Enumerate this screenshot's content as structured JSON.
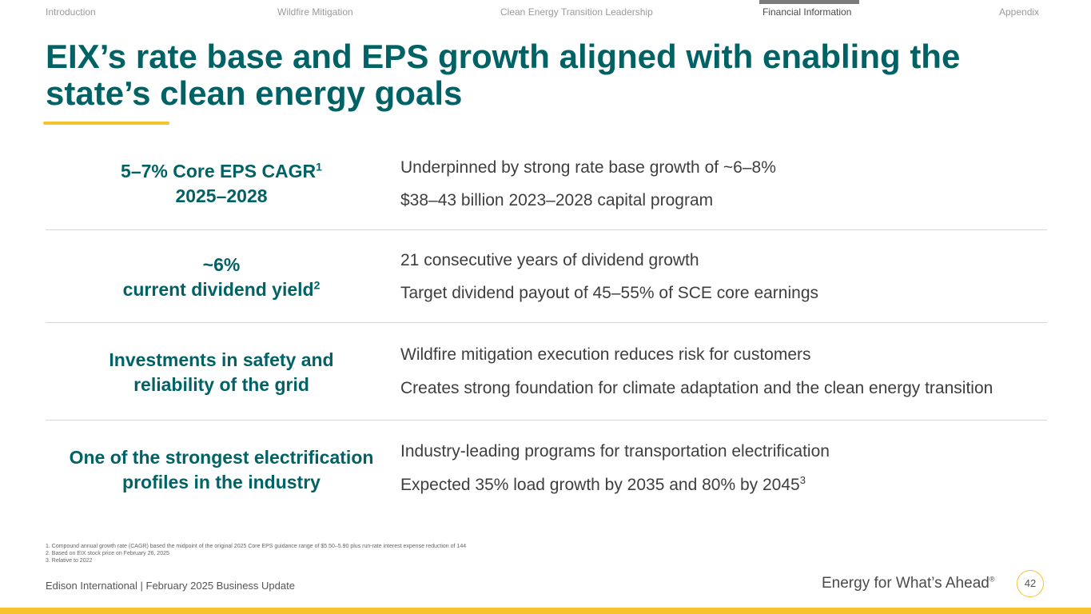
{
  "nav": {
    "items": [
      "Introduction",
      "Wildfire Mitigation",
      "Clean Energy Transition Leadership",
      "Financial Information",
      "Appendix"
    ],
    "active": "Financial Information"
  },
  "title": "EIX’s rate base and EPS growth aligned with enabling the state’s clean energy goals",
  "rows": [
    {
      "head_line1": "5–7% Core EPS CAGR",
      "head_line1_sup": "1",
      "head_line2": "2025–2028",
      "points": [
        "Underpinned by strong rate base growth of ~6–8%",
        "$38–43 billion 2023–2028 capital program"
      ]
    },
    {
      "head_line1": "~6%",
      "head_line2": "current dividend yield",
      "head_line2_sup": "2",
      "points": [
        "21 consecutive years of dividend growth",
        "Target dividend payout of 45–55% of SCE core earnings"
      ]
    },
    {
      "head_line1": "Investments in safety and",
      "head_line2": "reliability of the grid",
      "points": [
        "Wildfire mitigation execution reduces risk for customers",
        "Creates strong foundation for climate adaptation and the clean energy transition"
      ]
    },
    {
      "head_line1": "One of the strongest electrification",
      "head_line2": "profiles in the industry",
      "points": [
        "Industry-leading programs for transportation electrification",
        "Expected 35% load growth by 2035 and 80% by 2045"
      ],
      "last_point_sup": "3"
    }
  ],
  "footnotes": [
    "1.   Compound annual growth rate (CAGR) based the midpoint of the original 2025 Core EPS guidance range of $5.50–5.90 plus run-rate interest expense reduction of 144",
    "2.   Based on EIX stock price on February 26, 2025",
    "3.   Relative to 2022"
  ],
  "footer": {
    "left": "Edison International |  February 2025 Business Update",
    "tagline": "Energy for What’s Ahead",
    "tagline_mark": "®",
    "page_number": "42"
  },
  "colors": {
    "brand_teal": "#006265",
    "accent_yellow": "#f7c22e"
  }
}
